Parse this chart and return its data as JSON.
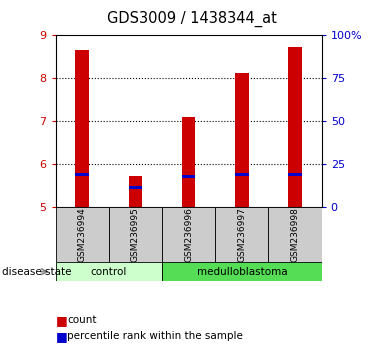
{
  "title": "GDS3009 / 1438344_at",
  "samples": [
    "GSM236994",
    "GSM236995",
    "GSM236996",
    "GSM236997",
    "GSM236998"
  ],
  "count_values": [
    8.65,
    5.72,
    7.1,
    8.12,
    8.72
  ],
  "percentile_values": [
    5.76,
    5.45,
    5.72,
    5.76,
    5.76
  ],
  "ylim_left": [
    5,
    9
  ],
  "ylim_right": [
    0,
    100
  ],
  "yticks_left": [
    5,
    6,
    7,
    8,
    9
  ],
  "yticks_right": [
    0,
    25,
    50,
    75,
    100
  ],
  "control_color": "#ccffcc",
  "medulloblastoma_color": "#55dd55",
  "bar_color_red": "#cc0000",
  "bar_color_blue": "#0000cc",
  "tick_color_left": "#cc0000",
  "tick_color_right": "#0000cc",
  "grid_color": "#000000",
  "sample_bg_color": "#cccccc",
  "bar_width": 0.25
}
